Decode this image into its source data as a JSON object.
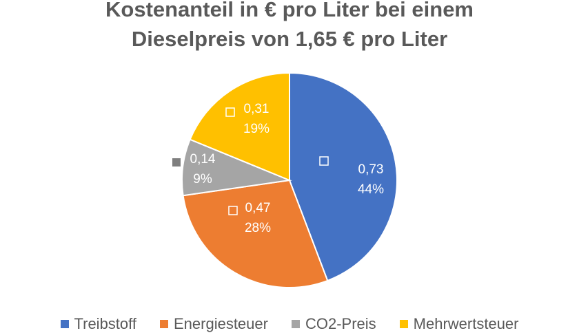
{
  "chart_data": {
    "type": "pie",
    "title_line1": "Kostenanteil in € pro Liter bei einem",
    "title_line2": "Dieselpreis von 1,65 € pro Liter",
    "legend_position": "bottom",
    "slices": [
      {
        "name": "Treibstoff",
        "value": 0.73,
        "value_label": "0,73",
        "percent_label": "44%",
        "color": "#4472C4"
      },
      {
        "name": "Energiesteuer",
        "value": 0.47,
        "value_label": "0,47",
        "percent_label": "28%",
        "color": "#ED7D31"
      },
      {
        "name": "CO2-Preis",
        "value": 0.14,
        "value_label": "0,14",
        "percent_label": "9%",
        "color": "#A5A5A5"
      },
      {
        "name": "Mehrwertsteuer",
        "value": 0.31,
        "value_label": "0,31",
        "percent_label": "19%",
        "color": "#FFC000"
      }
    ]
  }
}
